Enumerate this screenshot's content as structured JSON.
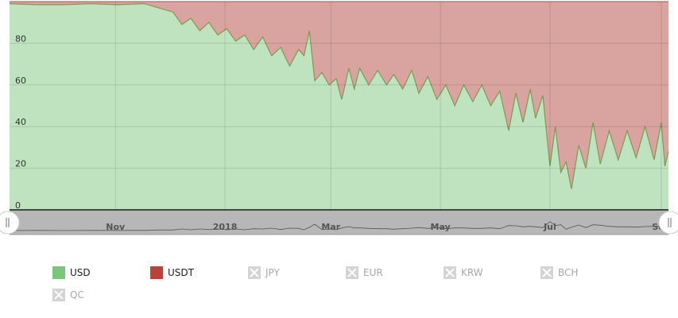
{
  "chart_data": {
    "type": "area",
    "stacked": true,
    "percent": true,
    "ylim": [
      0,
      100
    ],
    "yticks": [
      "0",
      "20",
      "40",
      "60",
      "80"
    ],
    "grid": true,
    "legend_position": "bottom",
    "x_date_range": [
      "2017-09-03",
      "2018-09-05"
    ],
    "xticks": [
      {
        "label": "Nov",
        "date": "2017-11-01"
      },
      {
        "label": "2018",
        "date": "2018-01-01"
      },
      {
        "label": "Mar",
        "date": "2018-03-01"
      },
      {
        "label": "May",
        "date": "2018-05-01"
      },
      {
        "label": "Jul",
        "date": "2018-07-01"
      },
      {
        "label": "Sep",
        "date": "2018-09-01"
      }
    ],
    "series": [
      {
        "name": "USD",
        "color": "#bfe3bf",
        "line_color": "#7c9a58",
        "legend_color": "#7cc67c",
        "points": [
          [
            "2017-09-03",
            99
          ],
          [
            "2017-09-18",
            98.5
          ],
          [
            "2017-10-03",
            98.5
          ],
          [
            "2017-10-18",
            99
          ],
          [
            "2017-11-02",
            98.5
          ],
          [
            "2017-11-17",
            99
          ],
          [
            "2017-11-25",
            97
          ],
          [
            "2017-12-03",
            95
          ],
          [
            "2017-12-08",
            89
          ],
          [
            "2017-12-13",
            92
          ],
          [
            "2017-12-18",
            86
          ],
          [
            "2017-12-23",
            90
          ],
          [
            "2017-12-28",
            84
          ],
          [
            "2018-01-02",
            87
          ],
          [
            "2018-01-07",
            81
          ],
          [
            "2018-01-12",
            84
          ],
          [
            "2018-01-17",
            77
          ],
          [
            "2018-01-22",
            83
          ],
          [
            "2018-01-27",
            74
          ],
          [
            "2018-02-01",
            78
          ],
          [
            "2018-02-06",
            69
          ],
          [
            "2018-02-11",
            77
          ],
          [
            "2018-02-14",
            74
          ],
          [
            "2018-02-17",
            86
          ],
          [
            "2018-02-20",
            62
          ],
          [
            "2018-02-24",
            66
          ],
          [
            "2018-02-28",
            60
          ],
          [
            "2018-03-04",
            63
          ],
          [
            "2018-03-07",
            53
          ],
          [
            "2018-03-11",
            68
          ],
          [
            "2018-03-14",
            58
          ],
          [
            "2018-03-17",
            68
          ],
          [
            "2018-03-22",
            60
          ],
          [
            "2018-03-27",
            67
          ],
          [
            "2018-04-01",
            60
          ],
          [
            "2018-04-05",
            65
          ],
          [
            "2018-04-10",
            58
          ],
          [
            "2018-04-15",
            67
          ],
          [
            "2018-04-19",
            56
          ],
          [
            "2018-04-24",
            64
          ],
          [
            "2018-04-29",
            53
          ],
          [
            "2018-05-04",
            60
          ],
          [
            "2018-05-09",
            50
          ],
          [
            "2018-05-14",
            60
          ],
          [
            "2018-05-19",
            52
          ],
          [
            "2018-05-24",
            60
          ],
          [
            "2018-05-29",
            50
          ],
          [
            "2018-06-03",
            57
          ],
          [
            "2018-06-08",
            38
          ],
          [
            "2018-06-12",
            56
          ],
          [
            "2018-06-16",
            42
          ],
          [
            "2018-06-20",
            58
          ],
          [
            "2018-06-23",
            44
          ],
          [
            "2018-06-27",
            55
          ],
          [
            "2018-07-01",
            21
          ],
          [
            "2018-07-04",
            40
          ],
          [
            "2018-07-07",
            18
          ],
          [
            "2018-07-10",
            23
          ],
          [
            "2018-07-13",
            10
          ],
          [
            "2018-07-17",
            31
          ],
          [
            "2018-07-21",
            20
          ],
          [
            "2018-07-25",
            42
          ],
          [
            "2018-07-29",
            22
          ],
          [
            "2018-08-03",
            38
          ],
          [
            "2018-08-08",
            24
          ],
          [
            "2018-08-13",
            38
          ],
          [
            "2018-08-18",
            25
          ],
          [
            "2018-08-23",
            40
          ],
          [
            "2018-08-28",
            24
          ],
          [
            "2018-09-01",
            42
          ],
          [
            "2018-09-03",
            21
          ],
          [
            "2018-09-05",
            28
          ]
        ]
      },
      {
        "name": "USDT",
        "color": "#d9a49f",
        "legend_color": "#b8433a",
        "points": "remainder to 100% of USD"
      }
    ],
    "hidden_series": [
      "JPY",
      "EUR",
      "KRW",
      "BCH",
      "QC"
    ]
  },
  "legend": {
    "items": [
      {
        "label": "USD",
        "color": "#7cc67c",
        "visible": true
      },
      {
        "label": "USDT",
        "color": "#b8433a",
        "visible": true
      },
      {
        "label": "JPY",
        "visible": false
      },
      {
        "label": "EUR",
        "visible": false
      },
      {
        "label": "KRW",
        "visible": false
      },
      {
        "label": "BCH",
        "visible": false
      },
      {
        "label": "QC",
        "visible": false
      }
    ]
  },
  "navigator": {
    "left_handle_icon": "handle-grip-icon",
    "right_handle_icon": "handle-grip-icon"
  }
}
